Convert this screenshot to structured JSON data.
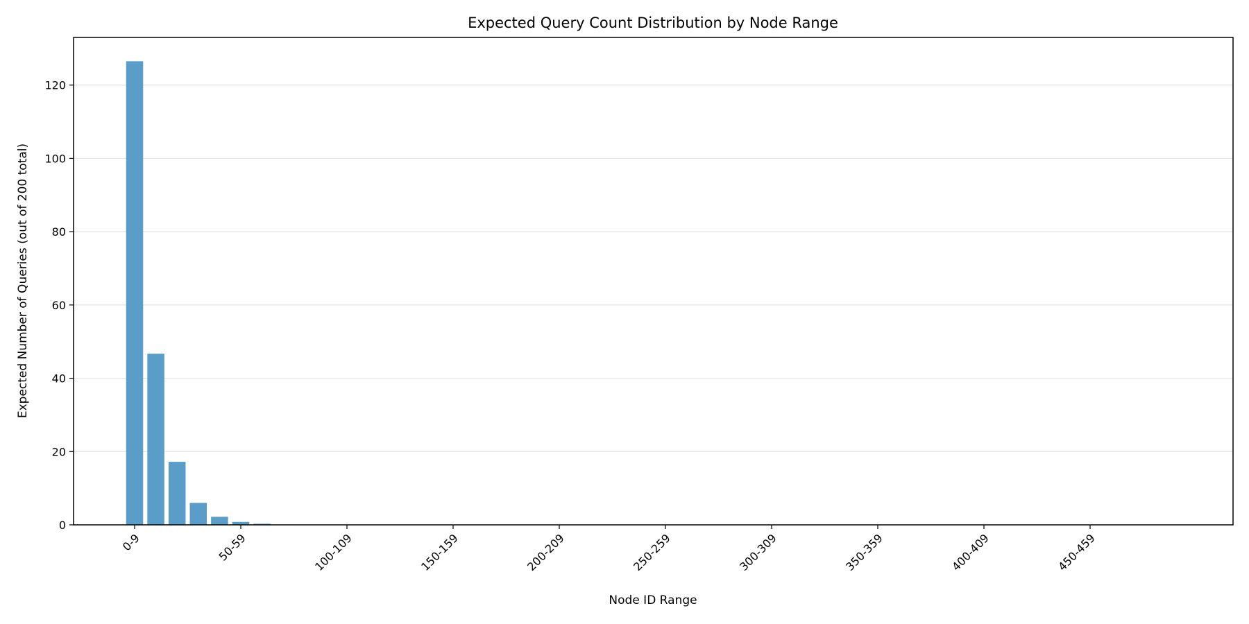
{
  "chart_data": {
    "type": "bar",
    "title": "Expected Query Count Distribution by Node Range",
    "xlabel": "Node ID Range",
    "ylabel": "Expected Number of Queries (out of 200 total)",
    "ylim": [
      0,
      133
    ],
    "yticks": [
      0,
      20,
      40,
      60,
      80,
      100,
      120
    ],
    "grid": "y",
    "legend": "none",
    "bar_color": "#5b9dc9",
    "categories": [
      "0-9",
      "10-19",
      "20-29",
      "30-39",
      "40-49",
      "50-59",
      "60-69",
      "70-79",
      "80-89",
      "90-99",
      "100-109",
      "110-119",
      "120-129",
      "130-139",
      "140-149",
      "150-159",
      "160-169",
      "170-179",
      "180-189",
      "190-199",
      "200-209",
      "210-219",
      "220-229",
      "230-239",
      "240-249",
      "250-259",
      "260-269",
      "270-279",
      "280-289",
      "290-299",
      "300-309",
      "310-319",
      "320-329",
      "330-339",
      "340-349",
      "350-359",
      "360-369",
      "370-379",
      "380-389",
      "390-399",
      "400-409",
      "410-419",
      "420-429",
      "430-439",
      "440-449",
      "450-459",
      "460-469",
      "470-479",
      "480-489",
      "490-499"
    ],
    "xtick_labels": [
      "0-9",
      "50-59",
      "100-109",
      "150-159",
      "200-209",
      "250-259",
      "300-309",
      "350-359",
      "400-409",
      "450-459"
    ],
    "values": [
      126.5,
      46.7,
      17.2,
      6.0,
      2.2,
      0.8,
      0.3,
      0.1,
      0.04,
      0.015,
      0.005,
      0.002,
      0.001,
      0,
      0,
      0,
      0,
      0,
      0,
      0,
      0,
      0,
      0,
      0,
      0,
      0,
      0,
      0,
      0,
      0,
      0,
      0,
      0,
      0,
      0,
      0,
      0,
      0,
      0,
      0,
      0,
      0,
      0,
      0,
      0,
      0,
      0,
      0,
      0,
      0
    ]
  }
}
